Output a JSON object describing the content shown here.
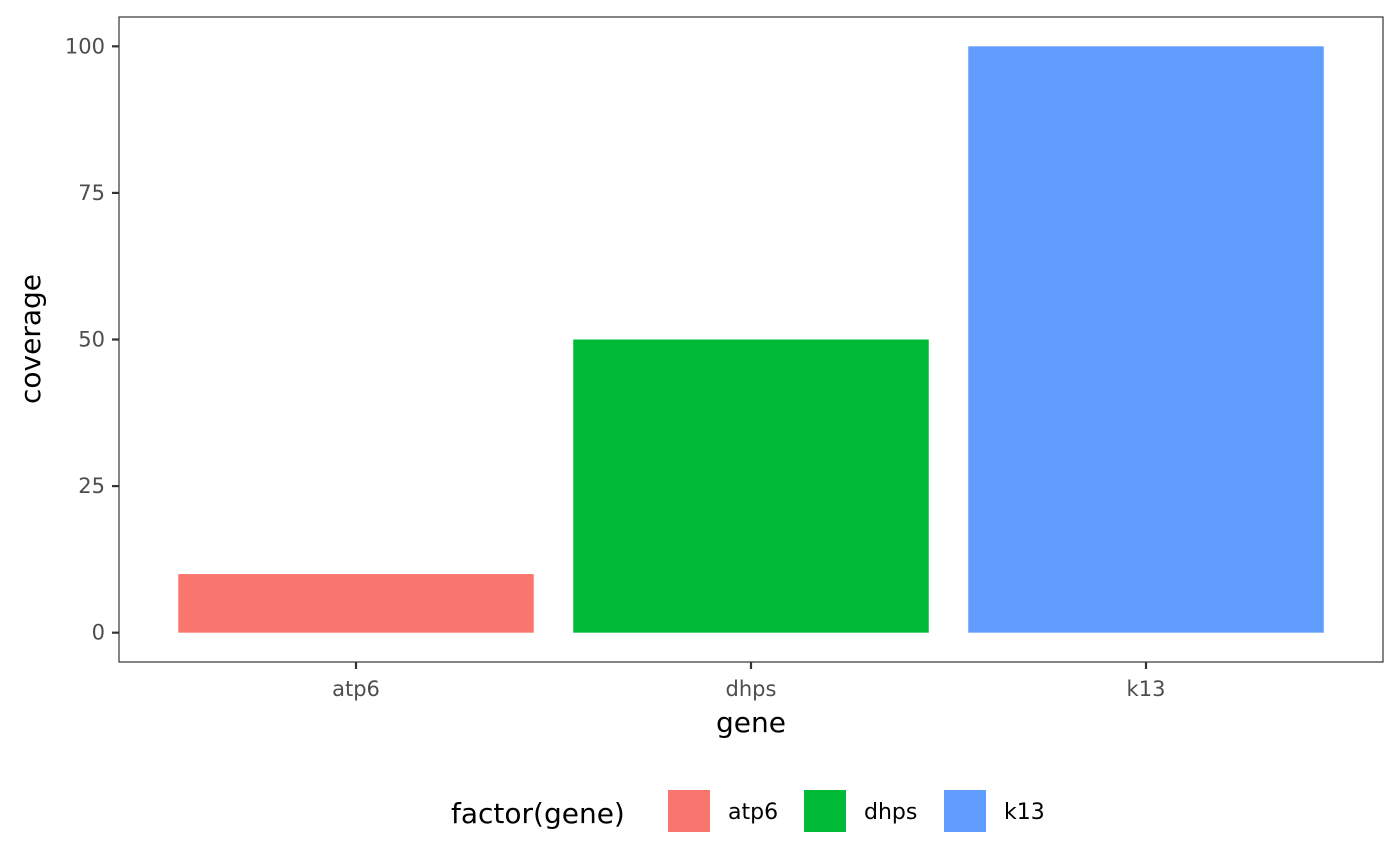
{
  "chart_data": {
    "type": "bar",
    "categories": [
      "atp6",
      "dhps",
      "k13"
    ],
    "values": [
      10,
      50,
      100
    ],
    "colors": [
      "#F8766D",
      "#00BA38",
      "#619CFF"
    ],
    "xlabel": "gene",
    "ylabel": "coverage",
    "ylim": [
      -5,
      105
    ],
    "yticks": [
      0,
      25,
      50,
      75,
      100
    ],
    "grid": false,
    "legend": {
      "title": "factor(gene)",
      "position": "bottom",
      "entries": [
        "atp6",
        "dhps",
        "k13"
      ]
    }
  }
}
